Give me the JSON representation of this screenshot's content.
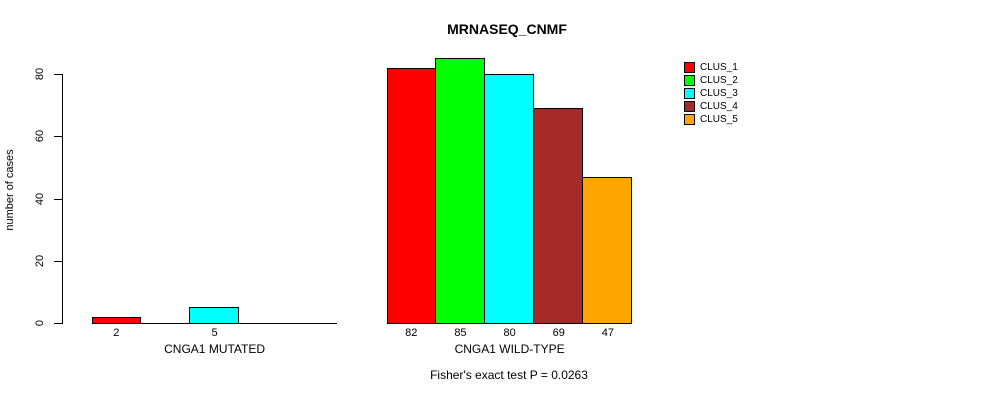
{
  "chart_data": {
    "type": "bar",
    "title": "MRNASEQ_CNMF",
    "ylabel": "number of cases",
    "xlabel": "",
    "ylim": [
      0,
      85
    ],
    "yticks": [
      0,
      20,
      40,
      60,
      80
    ],
    "grid": false,
    "legend_position": "top-right",
    "categories": [
      "CNGA1 MUTATED",
      "CNGA1 WILD-TYPE"
    ],
    "series": [
      {
        "name": "CLUS_1",
        "color": "#FF0000",
        "values": [
          2,
          82
        ]
      },
      {
        "name": "CLUS_2",
        "color": "#00FF00",
        "values": [
          0,
          85
        ]
      },
      {
        "name": "CLUS_3",
        "color": "#00FFFF",
        "values": [
          5,
          80
        ]
      },
      {
        "name": "CLUS_4",
        "color": "#A52A2A",
        "values": [
          0,
          69
        ]
      },
      {
        "name": "CLUS_5",
        "color": "#FFA500",
        "values": [
          0,
          47
        ]
      }
    ],
    "bar_value_labels": [
      [
        "2",
        "",
        "5",
        "",
        ""
      ],
      [
        "82",
        "85",
        "80",
        "69",
        "47"
      ]
    ],
    "annotation": "Fisher's exact test P = 0.0263"
  }
}
